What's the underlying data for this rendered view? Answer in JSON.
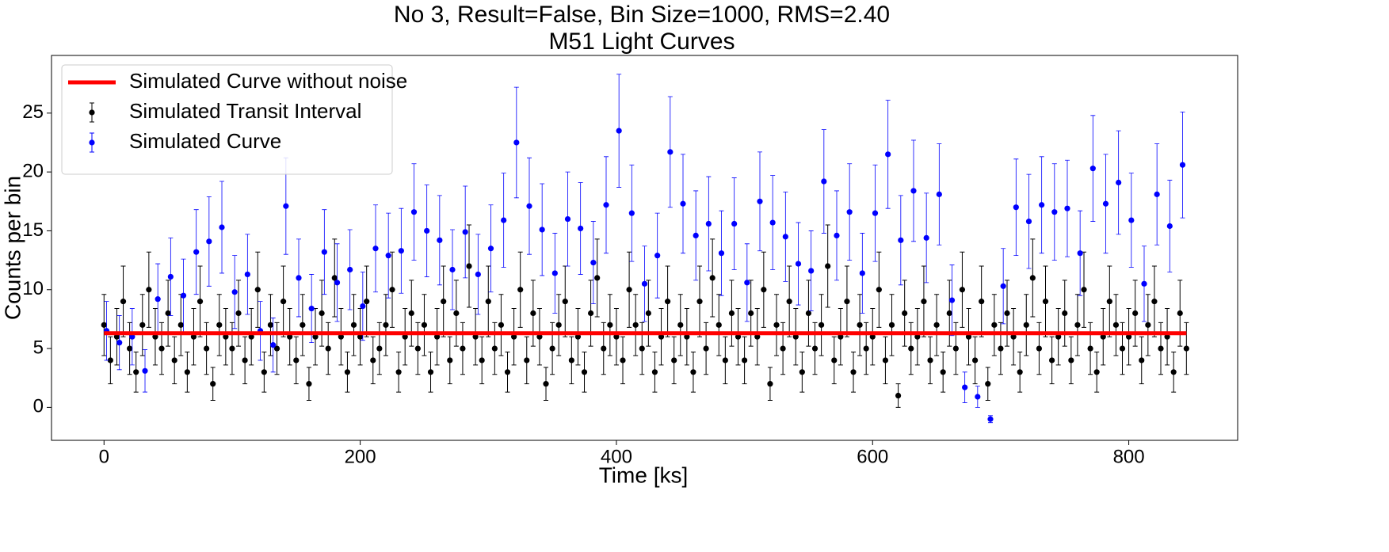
{
  "chart_data": {
    "type": "errorbar",
    "title": "No 3, Result=False, Bin Size=1000, RMS=2.40",
    "subtitle": "M51 Light Curves",
    "x_label": "Time [ks]",
    "y_label": "Counts per bin",
    "xlim": [
      -41,
      885
    ],
    "ylim": [
      -2.8,
      29.9
    ],
    "xticks": [
      0,
      200,
      400,
      600,
      800
    ],
    "yticks": [
      0,
      5,
      10,
      15,
      20,
      25
    ],
    "grid": false,
    "legend": "upper left",
    "series": [
      {
        "name": "Simulated Curve without noise",
        "style": "line",
        "color": "#ff0000",
        "x": [
          0,
          845
        ],
        "values": [
          6.3,
          6.3
        ]
      },
      {
        "name": "Simulated Transit Interval",
        "style": "errorbar",
        "color": "#000000",
        "x": [
          0,
          5,
          10,
          15,
          20,
          25,
          30,
          35,
          40,
          45,
          50,
          55,
          60,
          65,
          70,
          75,
          80,
          85,
          90,
          95,
          100,
          105,
          110,
          115,
          120,
          125,
          130,
          135,
          140,
          145,
          150,
          155,
          160,
          165,
          170,
          175,
          180,
          185,
          190,
          195,
          200,
          205,
          210,
          215,
          220,
          225,
          230,
          235,
          240,
          245,
          250,
          255,
          260,
          265,
          270,
          275,
          280,
          285,
          290,
          295,
          300,
          305,
          310,
          315,
          320,
          325,
          330,
          335,
          340,
          345,
          350,
          355,
          360,
          365,
          370,
          375,
          380,
          385,
          390,
          395,
          400,
          405,
          410,
          415,
          420,
          425,
          430,
          435,
          440,
          445,
          450,
          455,
          460,
          465,
          470,
          475,
          480,
          485,
          490,
          495,
          500,
          505,
          510,
          515,
          520,
          525,
          530,
          535,
          540,
          545,
          550,
          555,
          560,
          565,
          570,
          575,
          580,
          585,
          590,
          595,
          600,
          605,
          610,
          615,
          620,
          625,
          630,
          635,
          640,
          645,
          650,
          655,
          660,
          665,
          670,
          675,
          680,
          685,
          690,
          695,
          700,
          705,
          710,
          715,
          720,
          725,
          730,
          735,
          740,
          745,
          750,
          755,
          760,
          765,
          770,
          775,
          780,
          785,
          790,
          795,
          800,
          805,
          810,
          815,
          820,
          825,
          830,
          835,
          840,
          845
        ],
        "values": [
          7,
          4,
          6,
          9,
          5,
          3,
          7,
          10,
          6,
          5,
          8,
          4,
          7,
          3,
          6,
          9,
          5,
          2,
          7,
          6,
          5,
          8,
          4,
          6,
          10,
          3,
          7,
          5,
          9,
          6,
          4,
          7,
          2,
          6,
          8,
          5,
          11,
          6,
          3,
          7,
          6,
          9,
          4,
          5,
          7,
          10,
          3,
          6,
          8,
          5,
          7,
          3,
          6,
          9,
          4,
          8,
          5,
          12,
          6,
          4,
          9,
          5,
          7,
          3,
          6,
          10,
          4,
          8,
          6,
          2,
          5,
          7,
          9,
          4,
          6,
          3,
          8,
          11,
          5,
          7,
          6,
          4,
          10,
          7,
          5,
          8,
          3,
          6,
          9,
          4,
          7,
          6,
          3,
          9,
          5,
          11,
          7,
          4,
          8,
          6,
          4,
          8,
          6,
          10,
          2,
          7,
          5,
          9,
          6,
          3,
          8,
          5,
          7,
          12,
          4,
          6,
          9,
          3,
          7,
          5,
          6,
          10,
          4,
          7,
          1,
          8,
          5,
          6,
          9,
          4,
          7,
          3,
          8,
          5,
          10,
          6,
          4,
          9,
          2,
          7,
          5,
          8,
          6,
          3,
          7,
          11,
          5,
          9,
          4,
          6,
          8,
          4,
          7,
          10,
          5,
          3,
          6,
          9,
          7,
          5,
          6,
          8,
          4,
          7,
          9,
          5,
          6,
          3,
          8,
          5
        ],
        "errors": [
          2.6,
          2,
          2.4,
          3,
          2.2,
          1.7,
          2.6,
          3.2,
          2.4,
          2.2,
          2.8,
          2,
          2.6,
          1.7,
          2.4,
          3,
          2.2,
          1.4,
          2.6,
          2.4,
          2.2,
          2.8,
          2,
          2.4,
          3.2,
          1.7,
          2.6,
          2.2,
          3,
          2.4,
          2,
          2.6,
          1.4,
          2.4,
          2.8,
          2.2,
          3.3,
          2.4,
          1.7,
          2.6,
          2.4,
          3,
          2,
          2.2,
          2.6,
          3.2,
          1.7,
          2.4,
          2.8,
          2.2,
          2.6,
          1.7,
          2.4,
          3,
          2,
          2.8,
          2.2,
          3.5,
          2.4,
          2,
          3,
          2.2,
          2.6,
          1.7,
          2.4,
          3.2,
          2,
          2.8,
          2.4,
          1.4,
          2.2,
          2.6,
          3,
          2,
          2.4,
          1.7,
          2.8,
          3.3,
          2.2,
          2.6,
          2.4,
          2,
          3.2,
          2.6,
          2.2,
          2.8,
          1.7,
          2.4,
          3,
          2,
          2.6,
          2.4,
          1.7,
          3,
          2.2,
          3.3,
          2.6,
          2,
          2.8,
          2.4,
          2,
          2.8,
          2.4,
          3.2,
          1.4,
          2.6,
          2.2,
          3,
          2.4,
          1.7,
          2.8,
          2.2,
          2.6,
          3.5,
          2,
          2.4,
          3,
          1.7,
          2.6,
          2.2,
          2.4,
          3.2,
          2,
          2.6,
          1,
          2.8,
          2.2,
          2.4,
          3,
          2,
          2.6,
          1.7,
          2.8,
          2.2,
          3.2,
          2.4,
          2,
          3,
          1.4,
          2.6,
          2.2,
          2.8,
          2.4,
          1.7,
          2.6,
          3.3,
          2.2,
          3,
          2,
          2.4,
          2.8,
          2,
          2.6,
          3.2,
          2.2,
          1.7,
          2.4,
          3,
          2.6,
          2.2,
          2.4,
          2.8,
          2,
          2.6,
          3,
          2.2,
          2.4,
          1.7,
          2.8,
          2.2
        ]
      },
      {
        "name": "Simulated Curve",
        "style": "errorbar",
        "color": "#0000ff",
        "x": [
          2,
          12,
          22,
          32,
          42,
          52,
          62,
          72,
          82,
          92,
          102,
          112,
          122,
          132,
          142,
          152,
          162,
          172,
          182,
          192,
          202,
          212,
          222,
          232,
          242,
          252,
          262,
          272,
          282,
          292,
          302,
          312,
          322,
          332,
          342,
          352,
          362,
          372,
          382,
          392,
          402,
          412,
          422,
          432,
          442,
          452,
          462,
          472,
          482,
          492,
          502,
          512,
          522,
          532,
          542,
          552,
          562,
          572,
          582,
          592,
          602,
          612,
          622,
          632,
          642,
          652,
          662,
          672,
          682,
          692,
          702,
          712,
          722,
          732,
          742,
          752,
          762,
          772,
          782,
          792,
          802,
          812,
          822,
          832,
          842
        ],
        "values": [
          6.5,
          5.5,
          6,
          3.1,
          9.2,
          11.1,
          9.5,
          13.2,
          14.1,
          15.3,
          9.8,
          11.3,
          6.5,
          5.3,
          17.1,
          11,
          8.4,
          13.2,
          10.6,
          11.7,
          8.6,
          13.5,
          12.9,
          13.3,
          16.6,
          15,
          14.2,
          11.7,
          14.9,
          11.3,
          13.5,
          15.9,
          22.5,
          17.1,
          15.1,
          11.4,
          16,
          15.2,
          12.3,
          17.2,
          23.5,
          16.5,
          10.5,
          12.9,
          21.7,
          17.3,
          14.6,
          15.6,
          13.1,
          15.6,
          10.6,
          17.5,
          15.7,
          14.5,
          12.2,
          11.6,
          19.2,
          14.6,
          16.6,
          11.4,
          16.5,
          21.5,
          14.2,
          18.4,
          14.4,
          18.1,
          9.1,
          1.7,
          0.9,
          -1.0,
          10.3,
          17,
          15.8,
          17.2,
          16.6,
          16.9,
          13.1,
          20.3,
          17.3,
          19.1,
          15.9,
          10.5,
          18.1,
          15.4,
          20.6
        ],
        "errors": [
          2.5,
          2.3,
          2.4,
          1.8,
          3,
          3.3,
          3.1,
          3.6,
          3.8,
          3.9,
          3.1,
          3.4,
          2.5,
          2.3,
          4.1,
          3.3,
          2.9,
          3.6,
          3.3,
          3.4,
          2.9,
          3.7,
          3.6,
          3.6,
          4.1,
          3.9,
          3.8,
          3.4,
          3.9,
          3.4,
          3.7,
          4,
          4.7,
          4.1,
          3.9,
          3.4,
          4,
          3.9,
          3.5,
          4.1,
          4.8,
          4.1,
          3.2,
          3.6,
          4.7,
          4.2,
          3.8,
          4,
          3.6,
          3.9,
          3.3,
          4.2,
          4,
          3.8,
          3.5,
          3.4,
          4.4,
          3.8,
          4.1,
          3.4,
          4.1,
          4.6,
          3.8,
          4.3,
          3.8,
          4.3,
          3,
          1.3,
          0.9,
          0.3,
          3.2,
          4.1,
          4,
          4.1,
          4.1,
          4.1,
          3.6,
          4.5,
          4.2,
          4.4,
          4,
          3.2,
          4.3,
          3.9,
          4.5
        ]
      }
    ]
  }
}
